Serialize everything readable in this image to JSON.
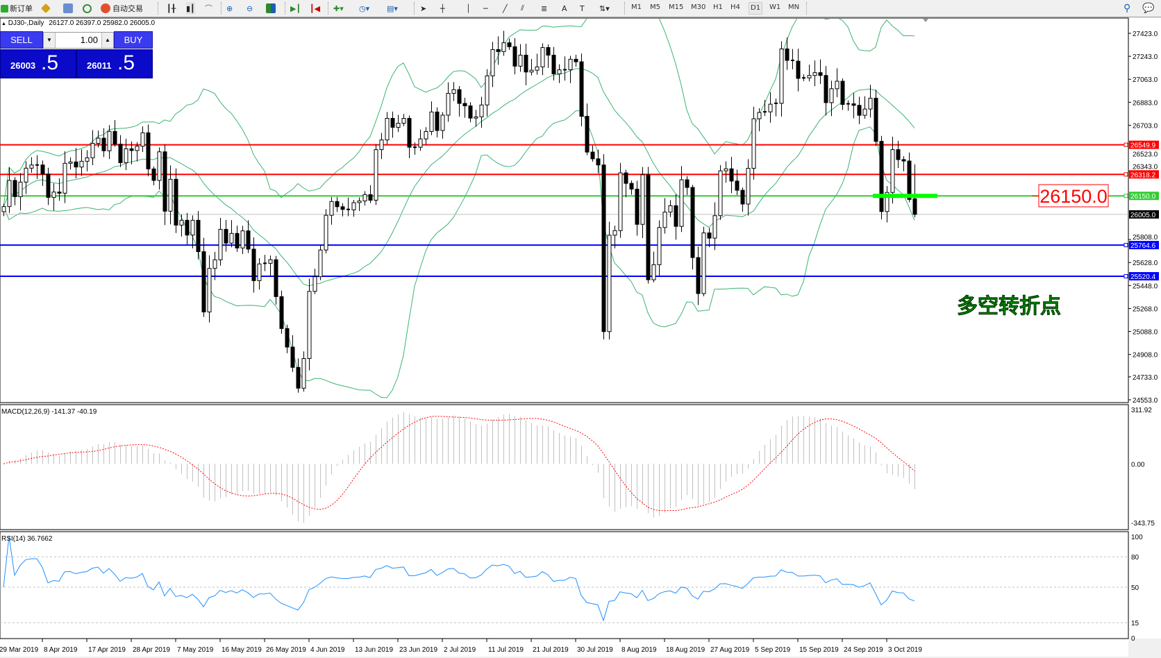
{
  "toolbar": {
    "new_order": "新订单",
    "auto_trading": "自动交易",
    "timeframes": [
      "M1",
      "M5",
      "M15",
      "M30",
      "H1",
      "H4",
      "D1",
      "W1",
      "MN"
    ],
    "active_timeframe": "D1"
  },
  "chart_header": {
    "arrow": "▲",
    "title": "DJ30-,Daily",
    "ohlc": "26127.0 26397.0 25982.0 26005.0"
  },
  "trade_panel": {
    "sell_label": "SELL",
    "buy_label": "BUY",
    "volume": "1.00",
    "sell_price_main": "26003",
    "sell_price_big": ".5",
    "buy_price_main": "26011",
    "buy_price_big": ".5",
    "color": "#0a0ac8"
  },
  "annotations": {
    "price_box": "26150.0",
    "text": "多空转折点",
    "text_color": "#00e000",
    "box_color": "#ff0000"
  },
  "macd": {
    "label": "MACD(12,26,9) -141.37 -40.19",
    "axis": [
      "311.92",
      "0.00",
      "-343.75"
    ],
    "range": [
      -343.75,
      311.92
    ],
    "histogram_color": "#c0c0c0",
    "signal_color": "#ff0000"
  },
  "rsi": {
    "label": "RSI(14) 36.7662",
    "axis": [
      "100",
      "80",
      "50",
      "15",
      "0"
    ],
    "levels": [
      80,
      50,
      15
    ],
    "color": "#1e90ff"
  },
  "chart_data": {
    "type": "candlestick",
    "symbol": "DJ30-",
    "timeframe": "Daily",
    "ylim": [
      24553,
      27423
    ],
    "price_axis": [
      "27423.0",
      "27243.0",
      "27063.0",
      "26883.0",
      "26703.0",
      "26523.0",
      "26343.0",
      "25808.0",
      "25628.0",
      "25448.0",
      "25268.0",
      "25088.0",
      "24908.0",
      "24733.0",
      "24553.0"
    ],
    "x_labels": [
      "29 Mar 2019",
      "8 Apr 2019",
      "17 Apr 2019",
      "28 Apr 2019",
      "7 May 2019",
      "16 May 2019",
      "26 May 2019",
      "4 Jun 2019",
      "13 Jun 2019",
      "23 Jun 2019",
      "2 Jul 2019",
      "11 Jul 2019",
      "21 Jul 2019",
      "30 Jul 2019",
      "8 Aug 2019",
      "18 Aug 2019",
      "27 Aug 2019",
      "5 Sep 2019",
      "15 Sep 2019",
      "24 Sep 2019",
      "3 Oct 2019"
    ],
    "bars_per_label": 8,
    "close": [
      26066,
      26271,
      26144,
      26258,
      26367,
      26392,
      26392,
      26321,
      26138,
      26180,
      26171,
      26405,
      26416,
      26376,
      26421,
      26448,
      26561,
      26602,
      26503,
      26655,
      26555,
      26410,
      26519,
      26505,
      26539,
      26644,
      26361,
      26271,
      26495,
      26030,
      26280,
      25921,
      25959,
      25843,
      25959,
      25713,
      25241,
      25582,
      25649,
      25888,
      25780,
      25856,
      25742,
      25876,
      25733,
      25486,
      25617,
      25622,
      25650,
      25361,
      25111,
      24966,
      24807,
      24644,
      24876,
      25402,
      25517,
      25726,
      25998,
      26106,
      26065,
      26044,
      26040,
      26097,
      26110,
      26160,
      26116,
      26512,
      26588,
      26757,
      26687,
      26719,
      26757,
      26531,
      26531,
      26596,
      26654,
      26807,
      26662,
      26782,
      26953,
      26982,
      26874,
      26855,
      26759,
      26769,
      26862,
      27090,
      27296,
      27280,
      27349,
      27318,
      27166,
      27252,
      27120,
      27134,
      27160,
      27312,
      27252,
      27105,
      27137,
      27138,
      27220,
      27200,
      26773,
      26493,
      26440,
      26392,
      25087,
      25842,
      25878,
      26330,
      26248,
      26203,
      25927,
      26315,
      25493,
      25611,
      25902,
      26023,
      26073,
      25911,
      26276,
      26216,
      25667,
      25385,
      25860,
      25819,
      25995,
      26346,
      26362,
      26266,
      26194,
      26086,
      26366,
      26754,
      26803,
      26808,
      26868,
      26875,
      27301,
      27211,
      27205,
      27070,
      27074,
      27093,
      27115,
      27093,
      26880,
      26989,
      27048,
      26866,
      26871,
      26859,
      26781,
      26830,
      26915,
      26577,
      26027,
      26177,
      26512,
      26434,
      26423,
      26122,
      26005
    ],
    "last_bar": {
      "open": 26127.0,
      "high": 26397.0,
      "low": 25982.0,
      "close": 26005.0
    },
    "bollinger": {
      "period": 20,
      "deviation": 2,
      "color": "#3cb371"
    },
    "horizontal_lines": [
      {
        "value": 26549.9,
        "label": "26549.9",
        "color": "#ff0000"
      },
      {
        "value": 26318.2,
        "label": "26318.2",
        "color": "#ff0000"
      },
      {
        "value": 26150.0,
        "label": "26150.0",
        "color": "#32cd32"
      },
      {
        "value": 26005.0,
        "label": "26005.0",
        "color": "#c0c0c0",
        "tag_color": "#000000"
      },
      {
        "value": 25764.6,
        "label": "25764.6",
        "color": "#0000ff"
      },
      {
        "value": 25520.4,
        "label": "25520.4",
        "color": "#0000ff"
      }
    ],
    "highlight_zone": {
      "value": 26150.0,
      "color": "#00ff00"
    }
  }
}
